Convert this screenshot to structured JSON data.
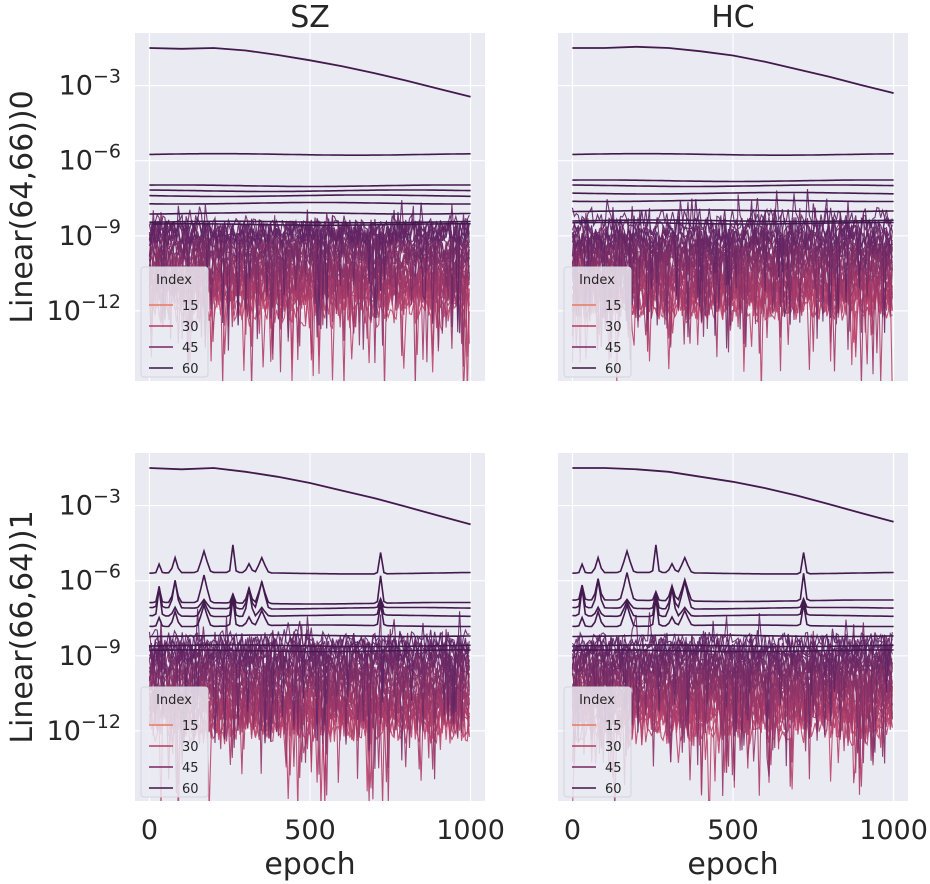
{
  "chart_data": {
    "type": "line",
    "y_scale": "log",
    "xlabel": "epoch",
    "ylim_log10": [
      -14.8,
      -0.9
    ],
    "xlim": [
      -45,
      1045
    ],
    "x_ticks": [
      0,
      500,
      1000
    ],
    "x_tick_labels": [
      "0",
      "500",
      "1000"
    ],
    "y_ticks_log10": [
      -3,
      -6,
      -9,
      -12
    ],
    "y_tick_labels": [
      "10",
      "10",
      "10",
      "10"
    ],
    "y_tick_exponents": [
      "−3",
      "−6",
      "−9",
      "−12"
    ],
    "legend": {
      "title": "Index",
      "position": "lower-left",
      "entries": [
        {
          "label": "15",
          "color": "#e8795f"
        },
        {
          "label": "30",
          "color": "#b6395e"
        },
        {
          "label": "45",
          "color": "#7a2461"
        },
        {
          "label": "60",
          "color": "#3d1545"
        }
      ]
    },
    "colors": {
      "background": "#eaeaf2",
      "grid": "#ffffff",
      "top_series": "#431a4d",
      "noise_low": "#c0446a",
      "noise_high": "#5d2464"
    },
    "columns": [
      "SZ",
      "HC"
    ],
    "rows": [
      "Linear(64,66))0",
      "Linear(66,64))1"
    ],
    "panels": [
      {
        "row": 0,
        "col": 0,
        "title": "SZ",
        "ylabel": "Linear(64,66))0",
        "top_series": {
          "x": [
            0,
            100,
            200,
            300,
            400,
            500,
            600,
            700,
            800,
            900,
            1000
          ],
          "log10": [
            -1.5,
            -1.53,
            -1.5,
            -1.6,
            -1.78,
            -1.99,
            -2.23,
            -2.5,
            -2.8,
            -3.13,
            -3.45
          ]
        },
        "flat_series_log10": [
          -5.75,
          -7.0,
          -7.2,
          -7.4,
          -7.7,
          -8.1,
          -8.45,
          -8.55
        ],
        "noise_band_log10": [
          -12.2,
          -8.6
        ],
        "has_spikes": false
      },
      {
        "row": 0,
        "col": 1,
        "title": "HC",
        "ylabel": "",
        "top_series": {
          "x": [
            0,
            100,
            200,
            300,
            400,
            500,
            600,
            700,
            800,
            900,
            1000
          ],
          "log10": [
            -1.5,
            -1.5,
            -1.45,
            -1.5,
            -1.63,
            -1.8,
            -2.05,
            -2.35,
            -2.65,
            -2.98,
            -3.3
          ]
        },
        "flat_series_log10": [
          -5.75,
          -6.8,
          -7.0,
          -7.3,
          -7.6,
          -8.0,
          -8.4,
          -8.5
        ],
        "noise_band_log10": [
          -12.2,
          -8.6
        ],
        "has_spikes": false
      },
      {
        "row": 1,
        "col": 0,
        "title": "",
        "ylabel": "Linear(66,64))1",
        "top_series": {
          "x": [
            0,
            100,
            200,
            300,
            400,
            500,
            600,
            700,
            800,
            900,
            1000
          ],
          "log10": [
            -1.5,
            -1.55,
            -1.5,
            -1.65,
            -1.85,
            -2.1,
            -2.4,
            -2.7,
            -3.05,
            -3.4,
            -3.75
          ]
        },
        "flat_series_log10": [
          -5.7,
          -6.9,
          -7.1,
          -7.4,
          -7.8,
          -8.2,
          -8.6,
          -8.8
        ],
        "noise_band_log10": [
          -12.2,
          -8.5
        ],
        "has_spikes": true,
        "spike_epochs": [
          30,
          80,
          170,
          260,
          310,
          350,
          720
        ]
      },
      {
        "row": 1,
        "col": 1,
        "title": "",
        "ylabel": "",
        "top_series": {
          "x": [
            0,
            100,
            200,
            300,
            400,
            500,
            600,
            700,
            800,
            900,
            1000
          ],
          "log10": [
            -1.5,
            -1.5,
            -1.55,
            -1.65,
            -1.85,
            -2.05,
            -2.3,
            -2.6,
            -2.95,
            -3.3,
            -3.65
          ]
        },
        "flat_series_log10": [
          -5.7,
          -6.8,
          -7.1,
          -7.4,
          -7.8,
          -8.2,
          -8.6,
          -8.8
        ],
        "noise_band_log10": [
          -12.2,
          -8.5
        ],
        "has_spikes": true,
        "spike_epochs": [
          30,
          80,
          170,
          260,
          310,
          350,
          720
        ]
      }
    ]
  }
}
